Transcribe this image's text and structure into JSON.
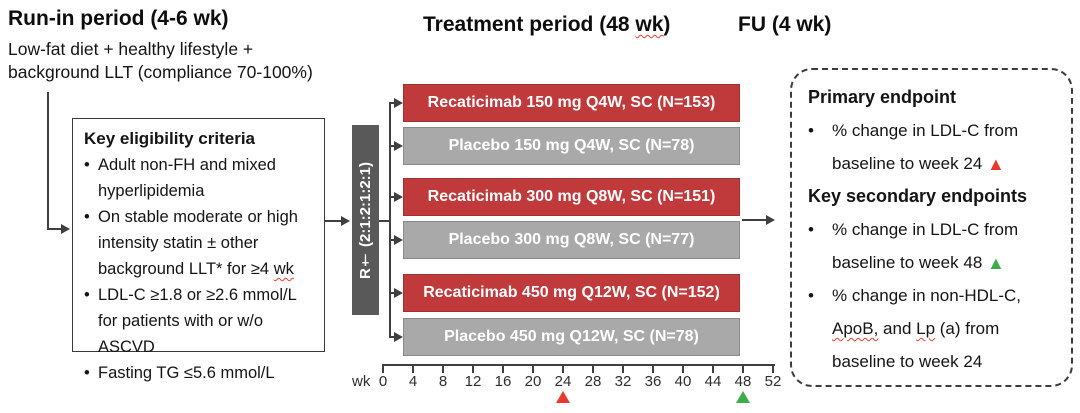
{
  "ui": {
    "bullet": "•",
    "triangle": "▲"
  },
  "colors": {
    "treatment_red": "#c0393b",
    "treatment_red_border": "#a22f31",
    "placebo_gray": "#a9a9a9",
    "placebo_gray_border": "#8a8a8a",
    "randomization_gray": "#595959",
    "marker_red": "#e8392f",
    "marker_green": "#3bae49"
  },
  "run_in": {
    "title": "Run-in period (4-6 wk)",
    "line1": "Low-fat diet + healthy lifestyle +",
    "line2": "background LLT (compliance 70-100%)"
  },
  "treatment_header": {
    "title_pre": "Treatment period (48 ",
    "title_wk": "wk",
    "title_post": ")"
  },
  "fu_header": {
    "title": "FU (4 wk)"
  },
  "eligibility": {
    "title": "Key eligibility criteria",
    "item1": "Adult non-FH and mixed hyperlipidemia",
    "item2_pre": "On stable moderate or high intensity statin ± other background LLT* for ≥4 ",
    "item2_wk": "wk",
    "item3": "LDL-C ≥1.8 or ≥2.6 mmol/L for patients with or w/o ASCVD",
    "item4": "Fasting TG ≤5.6 mmol/L"
  },
  "randomization": {
    "label": "R† (2:1:2:1:2:1)"
  },
  "arms": [
    {
      "label": "Recaticimab 150 mg Q4W, SC (N=153)",
      "type": "treatment"
    },
    {
      "label": "Placebo 150 mg Q4W, SC (N=78)",
      "type": "placebo"
    },
    {
      "label": "Recaticimab 300 mg Q8W, SC (N=151)",
      "type": "treatment"
    },
    {
      "label": "Placebo 300 mg Q8W, SC (N=77)",
      "type": "placebo"
    },
    {
      "label": "Recaticimab 450 mg Q12W, SC (N=152)",
      "type": "treatment"
    },
    {
      "label": "Placebo 450 mg Q12W, SC (N=78)",
      "type": "placebo"
    }
  ],
  "timeline": {
    "unit_label": "wk",
    "tick_labels": [
      "0",
      "4",
      "8",
      "12",
      "16",
      "20",
      "24",
      "28",
      "32",
      "36",
      "40",
      "44",
      "48",
      "52"
    ],
    "markers": [
      {
        "week": 24,
        "color_key": "marker_red"
      },
      {
        "week": 48,
        "color_key": "marker_green"
      }
    ]
  },
  "endpoints": {
    "primary_title": "Primary endpoint",
    "primary_item": "% change in LDL-C from baseline to week 24 ",
    "secondary_title": "Key secondary endpoints",
    "secondary_item1": "% change in LDL-C from baseline to week 48 ",
    "secondary_item2_p1": "% change in non-HDL-C, ",
    "secondary_item2_apob": "ApoB,",
    "secondary_item2_p2": " and ",
    "secondary_item2_lp": "Lp",
    "secondary_item2_p3": " (a) from baseline to week 24"
  }
}
